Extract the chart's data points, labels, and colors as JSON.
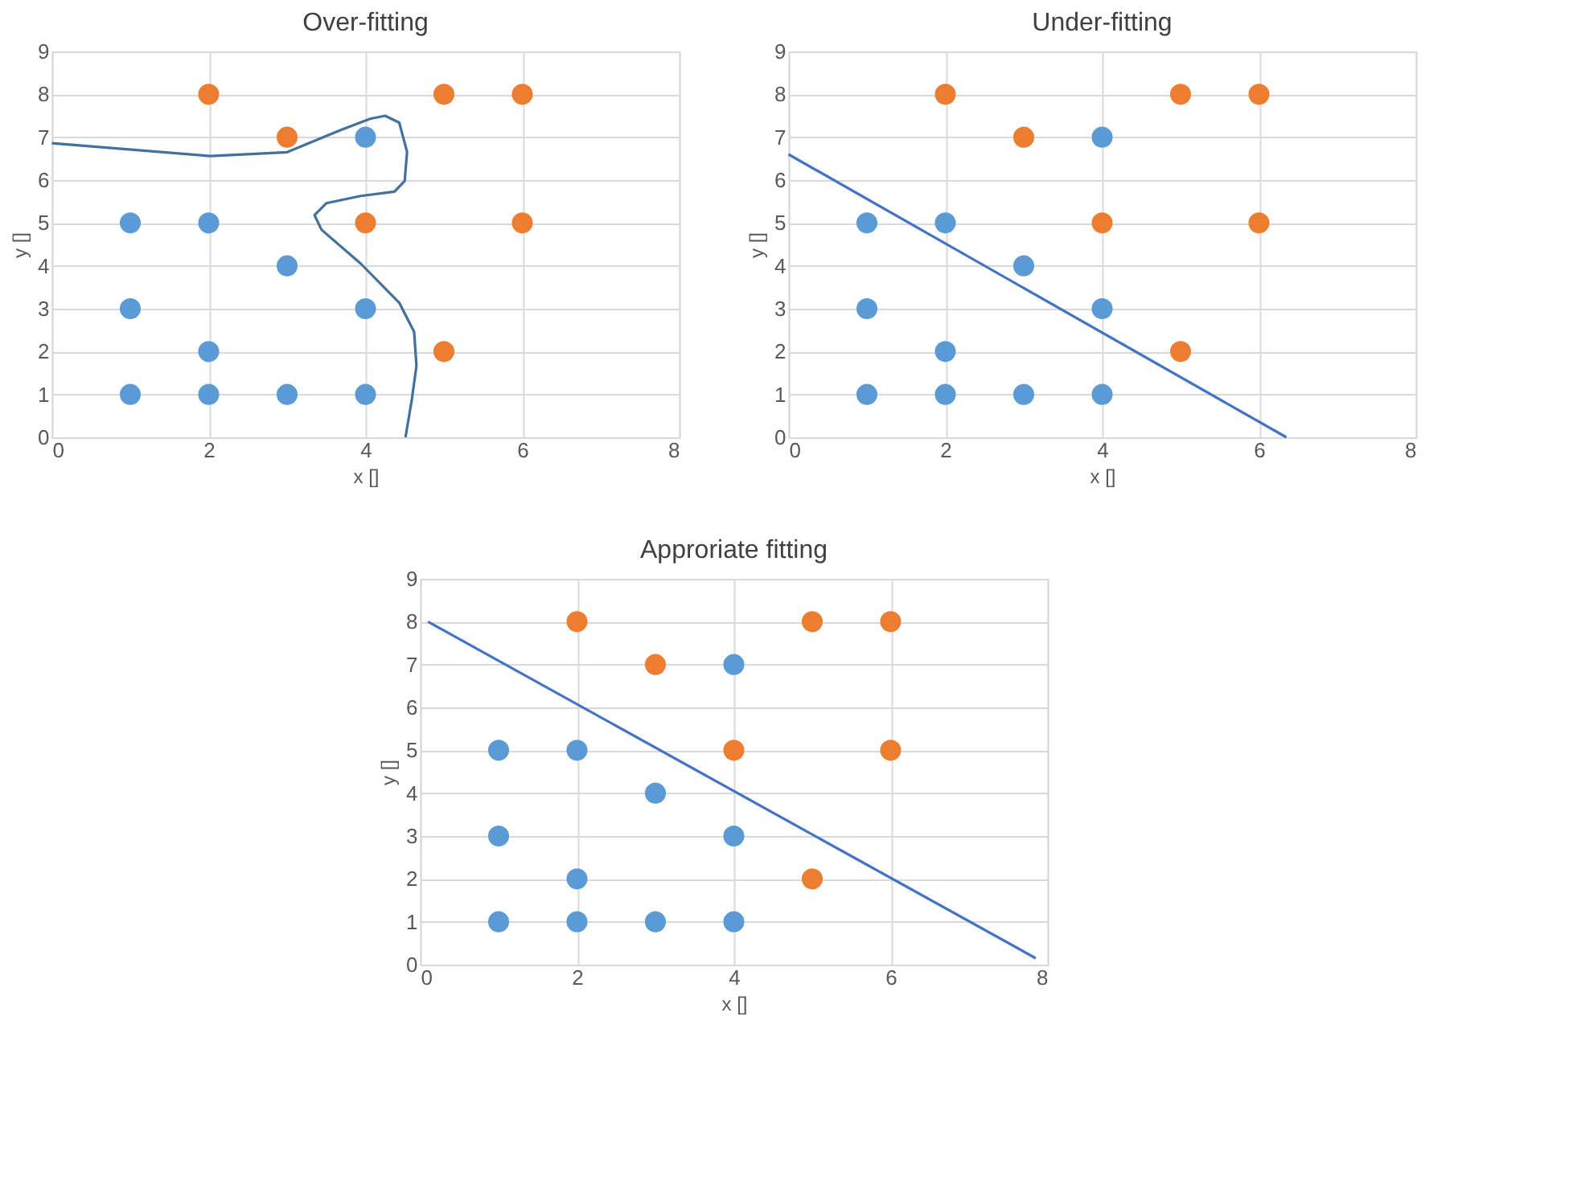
{
  "chart_data": [
    {
      "type": "scatter",
      "title": "Over-fitting",
      "xlabel": "x []",
      "ylabel": "y []",
      "xlim": [
        0,
        8
      ],
      "xticks": [
        0,
        2,
        4,
        6,
        8
      ],
      "ylim": [
        0,
        9
      ],
      "yticks": [
        0,
        1,
        2,
        3,
        4,
        5,
        6,
        7,
        8,
        9
      ],
      "grid": true,
      "marker": "circle",
      "series": [
        {
          "color": "#5b9bd5",
          "x": [
            1,
            2,
            3,
            4,
            1,
            4,
            2,
            1,
            2,
            3,
            4
          ],
          "values": [
            5,
            5,
            4,
            7,
            3,
            3,
            2,
            1,
            1,
            1,
            1
          ]
        },
        {
          "color": "#ed7d31",
          "x": [
            2,
            5,
            6,
            3,
            4,
            6,
            5
          ],
          "values": [
            8,
            8,
            8,
            7,
            5,
            5,
            2
          ]
        },
        {
          "type": "line",
          "marker": "none",
          "color": "#41719c",
          "line_style": "solid",
          "x": [
            0,
            2.02,
            3.0,
            3.69,
            4.06,
            4.25,
            4.43,
            4.53,
            4.5,
            4.37,
            3.94,
            3.5,
            3.35,
            3.44,
            3.94,
            4.43,
            4.62,
            4.65,
            4.59,
            4.51
          ],
          "values": [
            6.86,
            6.56,
            6.65,
            7.17,
            7.43,
            7.5,
            7.34,
            6.66,
            5.98,
            5.73,
            5.63,
            5.46,
            5.18,
            4.84,
            4.05,
            3.14,
            2.46,
            1.67,
            0.87,
            0
          ]
        }
      ]
    },
    {
      "type": "scatter",
      "title": "Under-fitting",
      "xlabel": "x []",
      "ylabel": "y []",
      "xlim": [
        0,
        8
      ],
      "xticks": [
        0,
        2,
        4,
        6,
        8
      ],
      "ylim": [
        0,
        9
      ],
      "yticks": [
        0,
        1,
        2,
        3,
        4,
        5,
        6,
        7,
        8,
        9
      ],
      "grid": true,
      "marker": "circle",
      "series": [
        {
          "color": "#5b9bd5",
          "x": [
            1,
            2,
            3,
            4,
            1,
            4,
            2,
            1,
            2,
            3,
            4
          ],
          "values": [
            5,
            5,
            4,
            7,
            3,
            3,
            2,
            1,
            1,
            1,
            1
          ]
        },
        {
          "color": "#ed7d31",
          "x": [
            2,
            5,
            6,
            3,
            4,
            6,
            5
          ],
          "values": [
            8,
            8,
            8,
            7,
            5,
            5,
            2
          ]
        },
        {
          "type": "line",
          "marker": "none",
          "color": "#4472c4",
          "line_style": "solid",
          "x": [
            0,
            6.35
          ],
          "values": [
            6.6,
            0
          ]
        }
      ]
    },
    {
      "type": "scatter",
      "title": "Approriate fitting",
      "xlabel": "x []",
      "ylabel": "y []",
      "xlim": [
        0,
        8
      ],
      "xticks": [
        0,
        2,
        4,
        6,
        8
      ],
      "ylim": [
        0,
        9
      ],
      "yticks": [
        0,
        1,
        2,
        3,
        4,
        5,
        6,
        7,
        8,
        9
      ],
      "grid": true,
      "marker": "circle",
      "series": [
        {
          "color": "#5b9bd5",
          "x": [
            1,
            2,
            3,
            4,
            1,
            4,
            2,
            1,
            2,
            3,
            4
          ],
          "values": [
            5,
            5,
            4,
            7,
            3,
            3,
            2,
            1,
            1,
            1,
            1
          ]
        },
        {
          "color": "#ed7d31",
          "x": [
            2,
            5,
            6,
            3,
            4,
            6,
            5
          ],
          "values": [
            8,
            8,
            8,
            7,
            5,
            5,
            2
          ]
        },
        {
          "type": "line",
          "marker": "none",
          "color": "#4472c4",
          "line_style": "solid",
          "x": [
            0.1,
            7.85
          ],
          "values": [
            8.0,
            0.15
          ]
        }
      ]
    }
  ]
}
